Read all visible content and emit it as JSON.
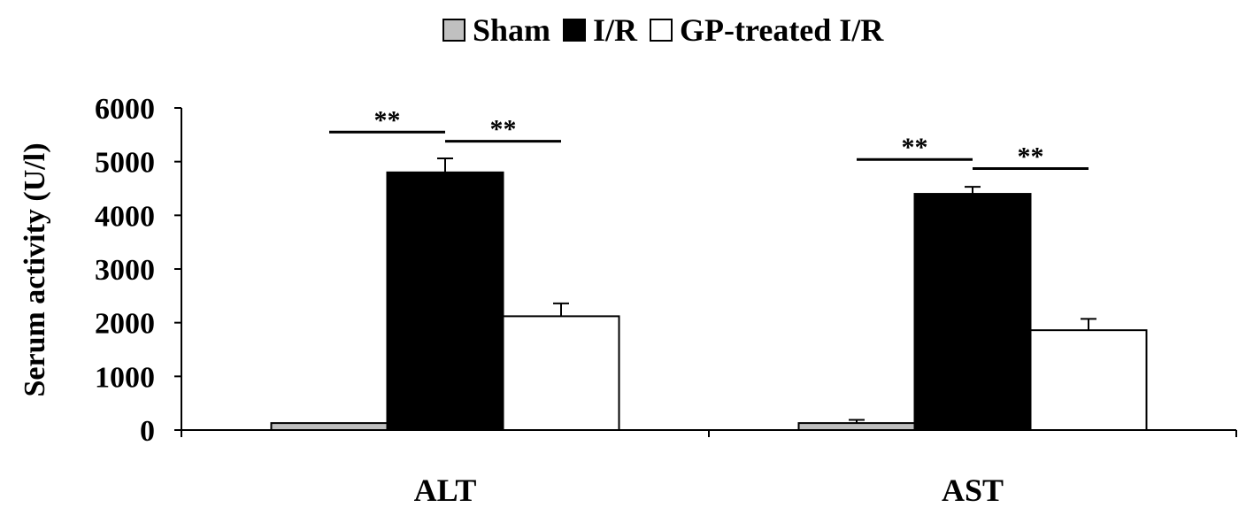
{
  "chart_data": {
    "type": "bar",
    "categories": [
      "ALT",
      "AST"
    ],
    "series": [
      {
        "name": "Sham",
        "values": [
          130,
          130
        ],
        "errors": [
          0,
          60
        ],
        "color": "#c0c0c0"
      },
      {
        "name": "I/R",
        "values": [
          4800,
          4400
        ],
        "errors": [
          260,
          130
        ],
        "color": "#000000"
      },
      {
        "name": "GP-treated I/R",
        "values": [
          2120,
          1860
        ],
        "errors": [
          240,
          210
        ],
        "color": "#ffffff"
      }
    ],
    "title": "",
    "xlabel": "",
    "ylabel": "Serum activity (U/l)",
    "ylim": [
      0,
      6000
    ],
    "yticks": [
      "0",
      "1000",
      "2000",
      "3000",
      "4000",
      "5000",
      "6000"
    ],
    "legend_position": "top-center",
    "significance": [
      {
        "category": "ALT",
        "from_series": "Sham",
        "to_series": "I/R",
        "label": "**",
        "level": 5550
      },
      {
        "category": "ALT",
        "from_series": "I/R",
        "to_series": "GP-treated I/R",
        "label": "**",
        "level": 5380
      },
      {
        "category": "AST",
        "from_series": "Sham",
        "to_series": "I/R",
        "label": "**",
        "level": 5040
      },
      {
        "category": "AST",
        "from_series": "I/R",
        "to_series": "GP-treated I/R",
        "label": "**",
        "level": 4870
      }
    ]
  }
}
